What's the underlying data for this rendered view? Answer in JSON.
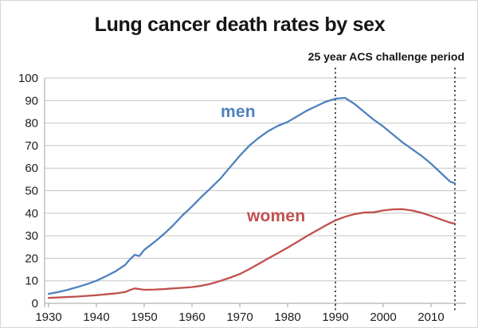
{
  "chart_data": {
    "type": "line",
    "title": "Lung cancer death rates by sex",
    "xlabel": "",
    "ylabel": "",
    "grid": "horizontal",
    "legend": "inline-labels",
    "xlim": [
      1930,
      2015
    ],
    "ylim": [
      0,
      100
    ],
    "xticks": [
      1930,
      1940,
      1950,
      1960,
      1970,
      1980,
      1990,
      2000,
      2010
    ],
    "yticks": [
      0,
      10,
      20,
      30,
      40,
      50,
      60,
      70,
      80,
      90,
      100
    ],
    "annotation": {
      "label": "25 year ACS challenge period",
      "x_from": 1990,
      "x_to": 2015
    },
    "vlines": [
      1990,
      2015
    ],
    "x": [
      1930,
      1932,
      1934,
      1936,
      1938,
      1940,
      1942,
      1944,
      1946,
      1947,
      1948,
      1949,
      1950,
      1952,
      1954,
      1956,
      1958,
      1960,
      1962,
      1964,
      1966,
      1968,
      1970,
      1972,
      1974,
      1976,
      1978,
      1980,
      1982,
      1984,
      1986,
      1988,
      1990,
      1992,
      1994,
      1996,
      1998,
      2000,
      2002,
      2004,
      2006,
      2008,
      2010,
      2012,
      2014,
      2015
    ],
    "series": [
      {
        "name": "men",
        "color": "#4F81BD",
        "values": [
          4.2,
          5.0,
          6.0,
          7.2,
          8.5,
          10.0,
          12.0,
          14.2,
          17.0,
          19.5,
          21.5,
          21.0,
          23.7,
          27.0,
          30.5,
          34.5,
          39.0,
          43.0,
          47.3,
          51.3,
          55.5,
          60.5,
          65.5,
          70.0,
          73.5,
          76.5,
          78.8,
          80.5,
          83.0,
          85.5,
          87.5,
          89.5,
          90.8,
          91.2,
          88.5,
          85.0,
          81.5,
          78.5,
          75.0,
          71.5,
          68.5,
          65.5,
          62.0,
          58.0,
          54.0,
          53.3
        ]
      },
      {
        "name": "women",
        "color": "#C0504D",
        "values": [
          2.4,
          2.6,
          2.8,
          3.0,
          3.3,
          3.6,
          4.0,
          4.4,
          5.0,
          5.9,
          6.6,
          6.3,
          6.0,
          6.1,
          6.3,
          6.6,
          6.9,
          7.2,
          7.8,
          8.7,
          10.0,
          11.4,
          13.0,
          15.2,
          17.6,
          20.0,
          22.3,
          24.7,
          27.2,
          29.8,
          32.2,
          34.6,
          36.8,
          38.4,
          39.6,
          40.3,
          40.4,
          41.2,
          41.7,
          41.8,
          41.2,
          40.2,
          38.8,
          37.3,
          35.8,
          35.4
        ]
      }
    ],
    "colors": {
      "men_line": "#4F81BD",
      "women_line": "#C0504D",
      "gridline": "#c6c6c6",
      "axis": "#a0a0a0",
      "vline": "#141414",
      "text": "#1c1c1c"
    }
  }
}
